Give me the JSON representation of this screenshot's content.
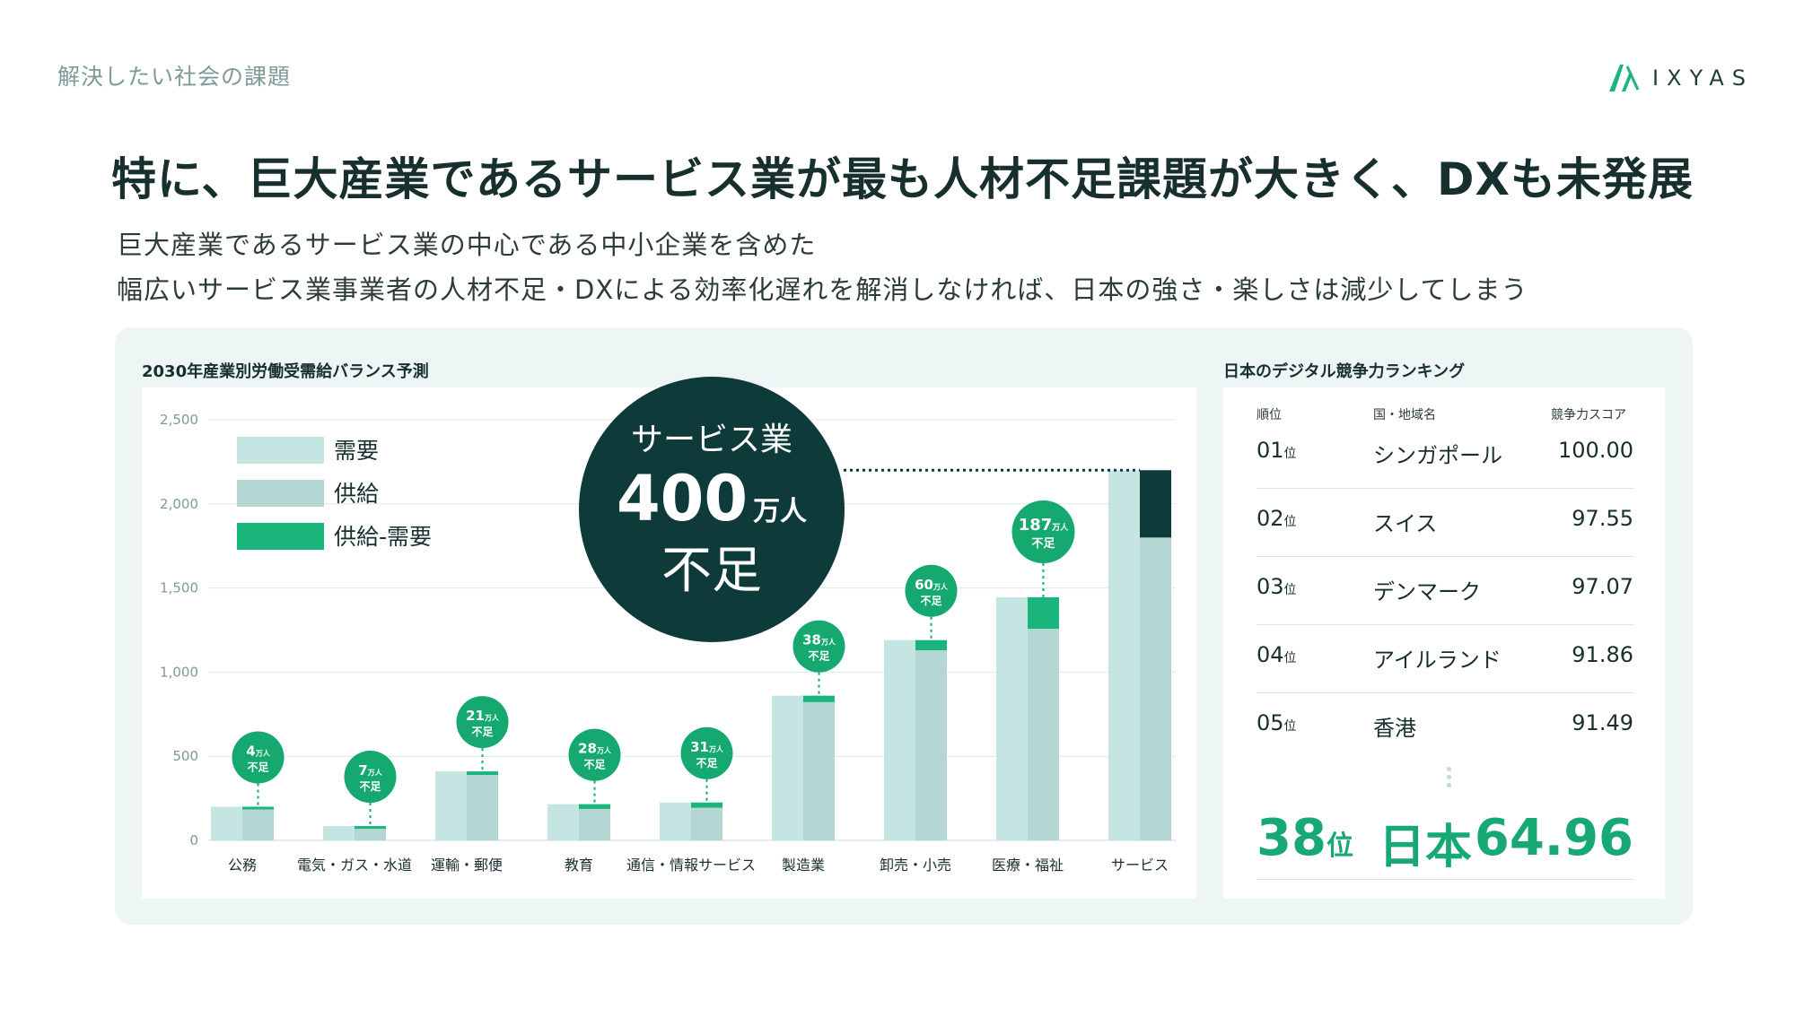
{
  "header": {
    "section_label": "解決したい社会の課題",
    "brand_name": "IXYAS",
    "brand_icon": "ixyas-logo-icon"
  },
  "headline": "特に、巨大産業であるサービス業が最も人材不足課題が大きく、DXも未発展",
  "subtitle": {
    "line1": "巨大産業であるサービス業の中心である中小企業を含めた",
    "line2": "幅広いサービス業事業者の人材不足・DXによる効率化遅れを解消しなければ、日本の強さ・楽しさは減少してしまう"
  },
  "colors": {
    "demand": "#c4e5e2",
    "supply": "#b5d7d3",
    "shortage_bar": "#19b57a",
    "shortage_bubble": "#15a96f",
    "service_shortage": "#0f3a3a",
    "dark_circle": "#0f3a3a",
    "accent_text": "#18a874"
  },
  "callout": {
    "line1": "サービス業",
    "number": "400",
    "unit": "万人",
    "line3": "不足"
  },
  "chart_data": {
    "type": "bar",
    "title": "2030年産業別労働受需給バランス予測",
    "categories": [
      "公務",
      "電気・ガス・水道",
      "運輸・郵便",
      "教育",
      "通信・情報サービス",
      "製造業",
      "卸売・小売",
      "医療・福祉",
      "サービス"
    ],
    "series": [
      {
        "name": "需要",
        "values": [
          200,
          85,
          410,
          215,
          225,
          860,
          1190,
          1445,
          2200
        ]
      },
      {
        "name": "供給",
        "values": [
          196,
          78,
          389,
          187,
          194,
          822,
          1130,
          1258,
          1800
        ]
      },
      {
        "name": "供給-需要",
        "values": [
          4,
          7,
          21,
          28,
          31,
          38,
          60,
          187,
          400
        ]
      }
    ],
    "shortage_labels": [
      {
        "number": "4",
        "unit": "万人",
        "suffix": "不足"
      },
      {
        "number": "7",
        "unit": "万人",
        "suffix": "不足"
      },
      {
        "number": "21",
        "unit": "万人",
        "suffix": "不足"
      },
      {
        "number": "28",
        "unit": "万人",
        "suffix": "不足"
      },
      {
        "number": "31",
        "unit": "万人",
        "suffix": "不足"
      },
      {
        "number": "38",
        "unit": "万人",
        "suffix": "不足"
      },
      {
        "number": "60",
        "unit": "万人",
        "suffix": "不足"
      },
      {
        "number": "187",
        "unit": "万人",
        "suffix": "不足"
      },
      null
    ],
    "yticks": [
      "0",
      "500",
      "1,000",
      "1,500",
      "2,000",
      "2,500"
    ],
    "ylim": [
      0,
      2500
    ],
    "grid": true,
    "legend_position": "top-left"
  },
  "ranking": {
    "title": "日本のデジタル競争力ランキング",
    "headers": {
      "rank": "順位",
      "country": "国・地域名",
      "score": "競争力スコア"
    },
    "rows": [
      {
        "rank": "01",
        "suffix": "位",
        "country": "シンガポール",
        "score": "100.00"
      },
      {
        "rank": "02",
        "suffix": "位",
        "country": "スイス",
        "score": "97.55"
      },
      {
        "rank": "03",
        "suffix": "位",
        "country": "デンマーク",
        "score": "97.07"
      },
      {
        "rank": "04",
        "suffix": "位",
        "country": "アイルランド",
        "score": "91.86"
      },
      {
        "rank": "05",
        "suffix": "位",
        "country": "香港",
        "score": "91.49"
      }
    ],
    "japan": {
      "rank": "38",
      "suffix": "位",
      "country": "日本",
      "score": "64.96"
    }
  }
}
